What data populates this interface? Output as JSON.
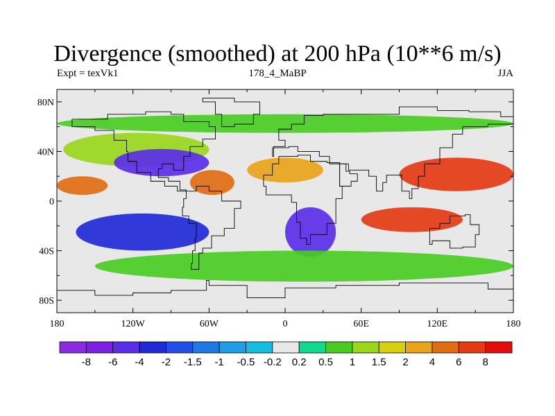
{
  "chart_data": {
    "type": "heatmap",
    "title": "Divergence (smoothed) at 200 hPa (10**6 m/s)",
    "left_string": "Expt = texVk1",
    "center_string": "178_4_MaBP",
    "right_string": "JJA",
    "x_ticks": [
      -180,
      -120,
      -60,
      0,
      60,
      120,
      180
    ],
    "x_tick_labels": [
      "180",
      "120W",
      "60W",
      "0",
      "60E",
      "120E",
      "180"
    ],
    "y_ticks": [
      80,
      40,
      0,
      -40,
      -80
    ],
    "y_tick_labels": [
      "80N",
      "40N",
      "0",
      "40S",
      "80S"
    ],
    "xlim": [
      -180,
      180
    ],
    "ylim": [
      -90,
      90
    ],
    "colorbar": {
      "labels": [
        "-8",
        "-6",
        "-4",
        "-2",
        "-1.5",
        "-1",
        "-0.5",
        "-0.2",
        "0.2",
        "0.5",
        "1",
        "1.5",
        "2",
        "4",
        "6",
        "8"
      ],
      "colors": [
        "#8a2be2",
        "#7b1fe0",
        "#5a2ee8",
        "#1e2ad6",
        "#1f4fe6",
        "#1e78e6",
        "#1f9ee8",
        "#12bfdf",
        "#e8e8e8",
        "#12d98f",
        "#48cc22",
        "#9ad61c",
        "#d8cf0f",
        "#e8a41a",
        "#e06d12",
        "#e43a14",
        "#e50c0c"
      ]
    },
    "regions": [
      {
        "name": "north-pacific-band",
        "lon": [
          -175,
          -60
        ],
        "lat": [
          28,
          55
        ],
        "level": "1"
      },
      {
        "name": "arctic-band",
        "lon": [
          -180,
          180
        ],
        "lat": [
          55,
          70
        ],
        "level": "0.5"
      },
      {
        "name": "tropical-north-pacific-neg",
        "lon": [
          -135,
          -60
        ],
        "lat": [
          20,
          42
        ],
        "level": "-4"
      },
      {
        "name": "tropical-west-pacific-pos",
        "lon": [
          -180,
          -140
        ],
        "lat": [
          5,
          20
        ],
        "level": "4"
      },
      {
        "name": "central-america-pos",
        "lon": [
          -75,
          -40
        ],
        "lat": [
          5,
          25
        ],
        "level": "4"
      },
      {
        "name": "north-atlantic-pos",
        "lon": [
          -30,
          30
        ],
        "lat": [
          15,
          35
        ],
        "level": "2"
      },
      {
        "name": "tibet-asia-pos",
        "lon": [
          90,
          180
        ],
        "lat": [
          8,
          35
        ],
        "level": "6"
      },
      {
        "name": "south-atlantic-neg",
        "lon": [
          0,
          40
        ],
        "lat": [
          -45,
          -5
        ],
        "level": "-4"
      },
      {
        "name": "indian-ocean-pos",
        "lon": [
          60,
          140
        ],
        "lat": [
          -25,
          -5
        ],
        "level": "6"
      },
      {
        "name": "south-pacific-neg",
        "lon": [
          -165,
          -60
        ],
        "lat": [
          -40,
          -10
        ],
        "level": "-2"
      },
      {
        "name": "southern-ocean-band",
        "lon": [
          -150,
          180
        ],
        "lat": [
          -65,
          -40
        ],
        "level": "0.5"
      }
    ]
  }
}
